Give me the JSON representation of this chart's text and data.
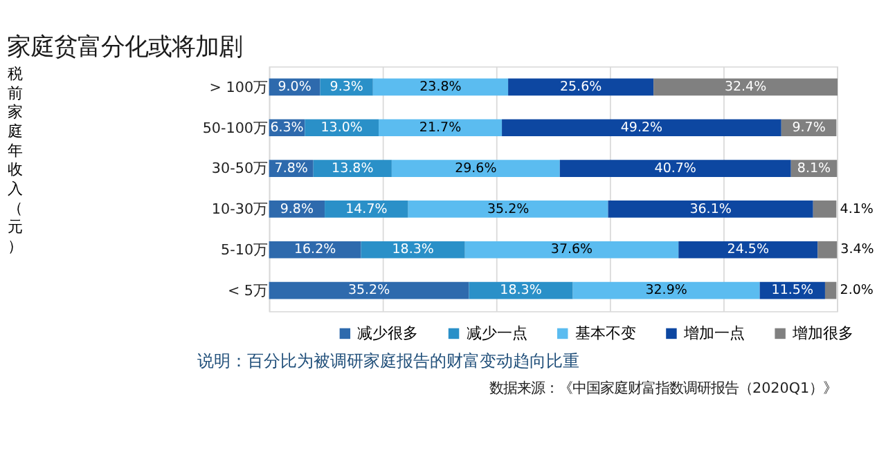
{
  "chart_data": {
    "type": "bar",
    "orientation": "horizontal",
    "stacked": true,
    "title": "家庭贫富分化或将加剧",
    "ylabel": "税前家庭年收入（元）",
    "categories": [
      "> 100万",
      "50-100万",
      "30-50万",
      "10-30万",
      "5-10万",
      "< 5万"
    ],
    "series": [
      {
        "name": "减少很多",
        "color": "#2e6aad",
        "values": [
          9.0,
          6.3,
          7.8,
          9.8,
          16.2,
          35.2
        ],
        "value_labels": [
          "9.0%",
          "6.3%",
          "7.8%",
          "9.8%",
          "16.2%",
          "35.2%"
        ]
      },
      {
        "name": "减少一点",
        "color": "#2a90c8",
        "values": [
          9.3,
          13.0,
          13.8,
          14.7,
          18.3,
          18.3
        ],
        "value_labels": [
          "9.3%",
          "13.0%",
          "13.8%",
          "14.7%",
          "18.3%",
          "18.3%"
        ]
      },
      {
        "name": "基本不变",
        "color": "#5bbcf0",
        "values": [
          23.8,
          21.7,
          29.6,
          35.2,
          37.6,
          32.9
        ],
        "value_labels": [
          "23.8%",
          "21.7%",
          "29.6%",
          "35.2%",
          "37.6%",
          "32.9%"
        ]
      },
      {
        "name": "增加一点",
        "color": "#0d47a1",
        "values": [
          25.6,
          49.2,
          40.7,
          36.1,
          24.5,
          11.5
        ],
        "value_labels": [
          "25.6%",
          "49.2%",
          "40.7%",
          "36.1%",
          "24.5%",
          "11.5%"
        ]
      },
      {
        "name": "增加很多",
        "color": "#808080",
        "values": [
          32.4,
          9.7,
          8.1,
          4.1,
          3.4,
          2.0
        ],
        "value_labels": [
          "32.4%",
          "9.7%",
          "8.1%",
          "4.1%",
          "3.4%",
          "2.0%"
        ]
      }
    ],
    "xlim": [
      0,
      100
    ],
    "xticks": [
      {
        "value": 0,
        "label": null
      },
      {
        "value": 20,
        "label": null
      },
      {
        "value": 40,
        "label": null
      },
      {
        "value": 60,
        "label": null
      },
      {
        "value": 80,
        "label": null
      },
      {
        "value": 100,
        "label": null
      }
    ],
    "grid": "x",
    "tick_labels": "y",
    "legend": "bottom",
    "annotations": [
      "说明：百分比为被调研家庭报告的财富变动趋向比重",
      "数据来源：《中国家庭财富指数调研报告（2020Q1）》"
    ]
  }
}
